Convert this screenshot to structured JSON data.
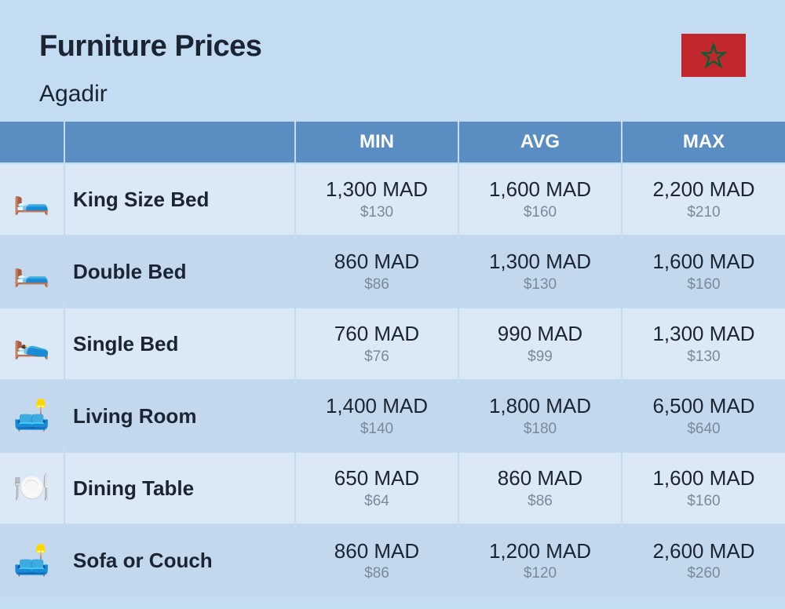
{
  "header": {
    "title": "Furniture Prices",
    "subtitle": "Agadir",
    "flag": {
      "background": "#c1272d",
      "star_color": "#006233"
    }
  },
  "columns": {
    "icon": "",
    "item": "",
    "min": "MIN",
    "avg": "AVG",
    "max": "MAX"
  },
  "colors": {
    "page_bg": "#c3dcf1",
    "header_bg": "#5a8dc2",
    "header_text": "#ffffff",
    "row_odd": "#dbe8f5",
    "row_even": "#c3d8ed",
    "price_main": "#1a2432",
    "price_sub": "#7a8a9a",
    "title": "#1a2432"
  },
  "typography": {
    "title_size": 38,
    "subtitle_size": 30,
    "header_size": 24,
    "item_size": 26,
    "price_main_size": 26,
    "price_sub_size": 19
  },
  "rows": [
    {
      "icon": "🛏️",
      "item": "King Size Bed",
      "min_main": "1,300 MAD",
      "min_sub": "$130",
      "avg_main": "1,600 MAD",
      "avg_sub": "$160",
      "max_main": "2,200 MAD",
      "max_sub": "$210"
    },
    {
      "icon": "🛏️",
      "item": "Double Bed",
      "min_main": "860 MAD",
      "min_sub": "$86",
      "avg_main": "1,300 MAD",
      "avg_sub": "$130",
      "max_main": "1,600 MAD",
      "max_sub": "$160"
    },
    {
      "icon": "🛌",
      "item": "Single Bed",
      "min_main": "760 MAD",
      "min_sub": "$76",
      "avg_main": "990 MAD",
      "avg_sub": "$99",
      "max_main": "1,300 MAD",
      "max_sub": "$130"
    },
    {
      "icon": "🛋️",
      "item": "Living Room",
      "min_main": "1,400 MAD",
      "min_sub": "$140",
      "avg_main": "1,800 MAD",
      "avg_sub": "$180",
      "max_main": "6,500 MAD",
      "max_sub": "$640"
    },
    {
      "icon": "🍽️",
      "item": "Dining Table",
      "min_main": "650 MAD",
      "min_sub": "$64",
      "avg_main": "860 MAD",
      "avg_sub": "$86",
      "max_main": "1,600 MAD",
      "max_sub": "$160"
    },
    {
      "icon": "🛋️",
      "item": "Sofa or Couch",
      "min_main": "860 MAD",
      "min_sub": "$86",
      "avg_main": "1,200 MAD",
      "avg_sub": "$120",
      "max_main": "2,600 MAD",
      "max_sub": "$260"
    }
  ]
}
